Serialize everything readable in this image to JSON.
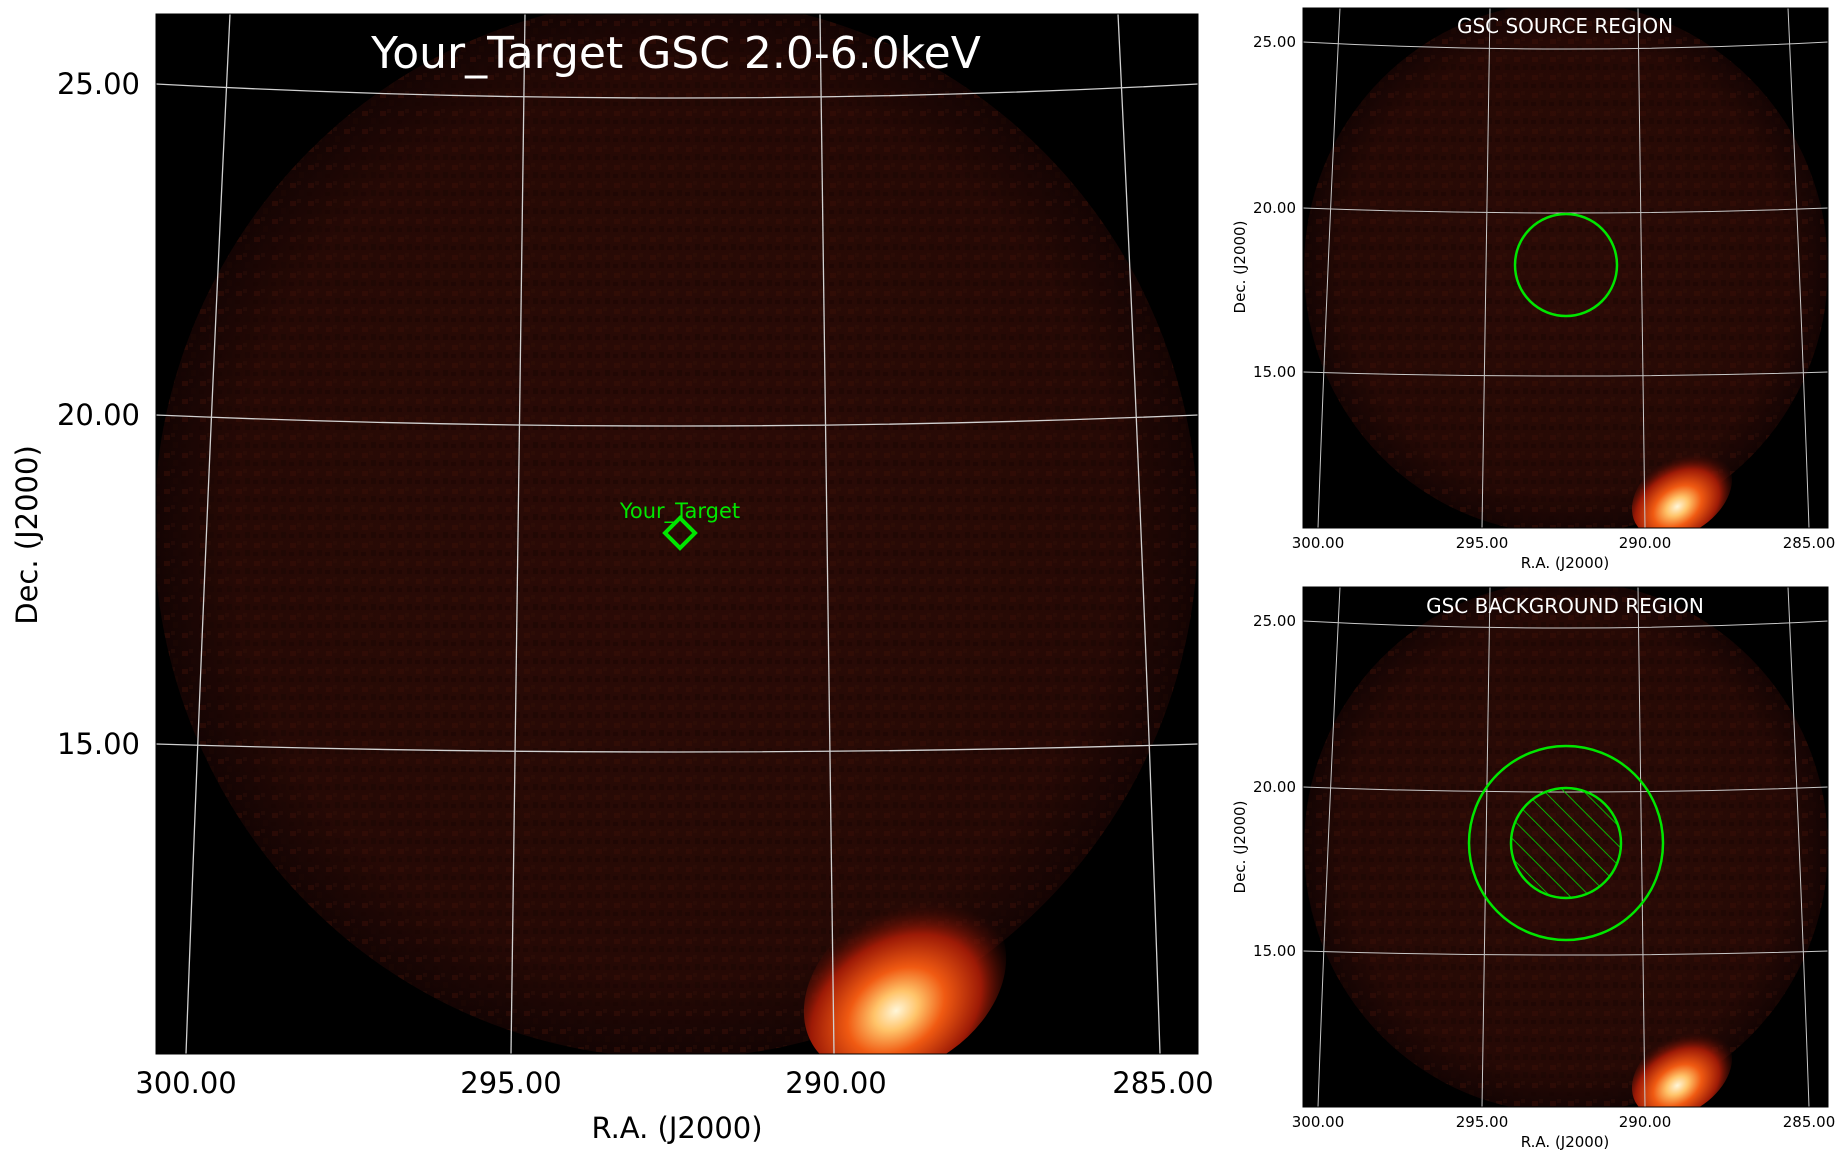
{
  "main_panel": {
    "title": "Your_Target GSC 2.0-6.0keV",
    "xlabel": "R.A. (J2000)",
    "ylabel": "Dec. (J2000)",
    "x_ticks": [
      "300.00",
      "295.00",
      "290.00",
      "285.00"
    ],
    "y_ticks": [
      "25.00",
      "20.00",
      "15.00"
    ],
    "target_label": "Your_Target"
  },
  "source_panel": {
    "title": "GSC SOURCE REGION",
    "xlabel": "R.A. (J2000)",
    "ylabel": "Dec. (J2000)",
    "x_ticks": [
      "300.00",
      "295.00",
      "290.00",
      "285.00"
    ],
    "y_ticks": [
      "25.00",
      "20.00",
      "15.00"
    ]
  },
  "background_panel": {
    "title": "GSC BACKGROUND REGION",
    "xlabel": "R.A. (J2000)",
    "ylabel": "Dec. (J2000)",
    "x_ticks": [
      "300.00",
      "295.00",
      "290.00",
      "285.00"
    ],
    "y_ticks": [
      "25.00",
      "20.00",
      "15.00"
    ]
  },
  "colors": {
    "region": "#00e600",
    "grid": "#d0d0d0",
    "field": "#2a0b06",
    "title_on_image": "#ffffff"
  }
}
